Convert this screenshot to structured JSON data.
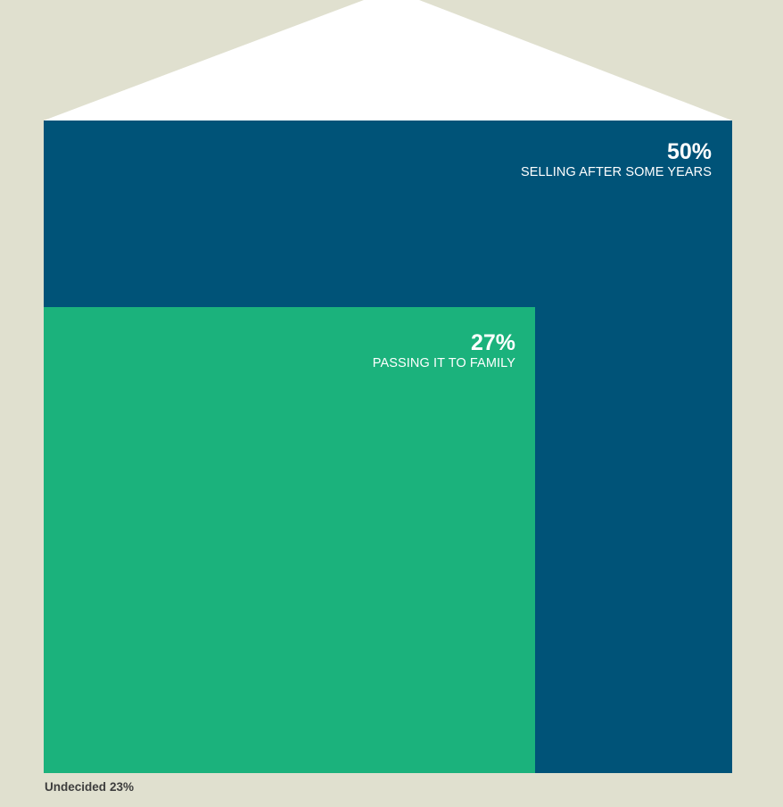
{
  "chart_data": {
    "type": "nested-area",
    "title": "",
    "series": [
      {
        "name": "SELLING AFTER SOME YEARS",
        "value": 50,
        "value_label": "50%",
        "color": "#005378"
      },
      {
        "name": "PASSING IT TO FAMILY",
        "value": 27,
        "value_label": "27%",
        "color": "#1bb27c"
      }
    ],
    "remainder": {
      "name": "Undecided",
      "value": 23,
      "value_label": "23%"
    },
    "units": "%"
  },
  "colors": {
    "background": "#e0e0cf",
    "roof": "#ffffff",
    "selling": "#005378",
    "family": "#1bb27c",
    "label_text": "#ffffff",
    "footnote_text": "#3d3d3d"
  }
}
